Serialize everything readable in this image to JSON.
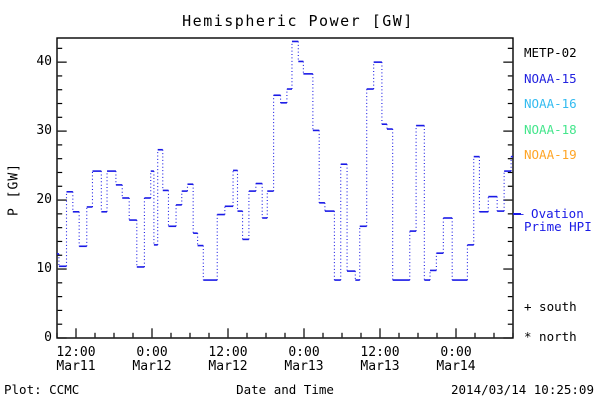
{
  "footer": {
    "left": "Plot: CCMC",
    "timestamp": "2014/03/14 10:25:09"
  },
  "chart_data": {
    "type": "line",
    "subtype": "step-dotted",
    "title": "Hemispheric Power [GW]",
    "xlabel": "Date and Time",
    "ylabel": "P [GW]",
    "ylim": [
      0,
      43.5
    ],
    "y_major_ticks": [
      0,
      10,
      20,
      30,
      40
    ],
    "y_minor_step": 2,
    "x_hours_range": [
      0,
      72
    ],
    "x_minor_step_hours": 3,
    "x_major_ticks": [
      {
        "t": 3,
        "time": "12:00",
        "date": "Mar11"
      },
      {
        "t": 15,
        "time": "0:00",
        "date": "Mar12"
      },
      {
        "t": 27,
        "time": "12:00",
        "date": "Mar12"
      },
      {
        "t": 39,
        "time": "0:00",
        "date": "Mar13"
      },
      {
        "t": 51,
        "time": "12:00",
        "date": "Mar13"
      },
      {
        "t": 63,
        "time": "0:00",
        "date": "Mar14"
      }
    ],
    "grid": false,
    "axis_color": "#000000",
    "series": [
      {
        "name": "Hemispheric Power",
        "color": "#1a1ae6",
        "steps_t_gw": [
          [
            0.0,
            12.2
          ],
          [
            0.3,
            10.4
          ],
          [
            1.5,
            21.2
          ],
          [
            2.5,
            18.3
          ],
          [
            3.5,
            13.3
          ],
          [
            4.7,
            19.0
          ],
          [
            5.6,
            24.2
          ],
          [
            7.0,
            18.3
          ],
          [
            7.9,
            24.2
          ],
          [
            9.3,
            22.2
          ],
          [
            10.3,
            20.3
          ],
          [
            11.4,
            17.1
          ],
          [
            12.6,
            10.3
          ],
          [
            13.8,
            20.3
          ],
          [
            14.8,
            24.2
          ],
          [
            15.3,
            13.5
          ],
          [
            15.9,
            27.3
          ],
          [
            16.7,
            21.4
          ],
          [
            17.6,
            16.2
          ],
          [
            18.8,
            19.3
          ],
          [
            19.7,
            21.3
          ],
          [
            20.6,
            22.3
          ],
          [
            21.5,
            15.2
          ],
          [
            22.2,
            13.4
          ],
          [
            23.1,
            8.4
          ],
          [
            25.3,
            17.9
          ],
          [
            26.5,
            19.1
          ],
          [
            27.8,
            24.3
          ],
          [
            28.5,
            18.4
          ],
          [
            29.3,
            14.3
          ],
          [
            30.3,
            21.3
          ],
          [
            31.4,
            22.4
          ],
          [
            32.4,
            17.4
          ],
          [
            33.2,
            21.3
          ],
          [
            34.2,
            35.2
          ],
          [
            35.3,
            34.1
          ],
          [
            36.3,
            36.1
          ],
          [
            37.1,
            43.0
          ],
          [
            38.1,
            40.1
          ],
          [
            38.9,
            38.3
          ],
          [
            40.4,
            30.1
          ],
          [
            41.4,
            19.6
          ],
          [
            42.3,
            18.4
          ],
          [
            43.8,
            8.4
          ],
          [
            44.8,
            25.2
          ],
          [
            45.8,
            9.7
          ],
          [
            47.1,
            8.4
          ],
          [
            47.8,
            16.2
          ],
          [
            48.9,
            36.1
          ],
          [
            50.0,
            40.0
          ],
          [
            51.3,
            31.0
          ],
          [
            52.1,
            30.3
          ],
          [
            53.0,
            8.4
          ],
          [
            55.7,
            15.5
          ],
          [
            56.7,
            30.8
          ],
          [
            58.0,
            8.4
          ],
          [
            58.9,
            9.8
          ],
          [
            59.9,
            12.3
          ],
          [
            61.0,
            17.4
          ],
          [
            62.4,
            8.4
          ],
          [
            64.8,
            13.5
          ],
          [
            65.8,
            26.3
          ],
          [
            66.7,
            18.3
          ],
          [
            68.1,
            20.5
          ],
          [
            69.5,
            18.4
          ],
          [
            70.6,
            24.2
          ],
          [
            71.7,
            26.3
          ]
        ]
      }
    ],
    "legend": {
      "position": "right",
      "entries": [
        {
          "label": "METP-02",
          "color": "#000000"
        },
        {
          "label": "NOAA-15",
          "color": "#2323e0"
        },
        {
          "label": "NOAA-16",
          "color": "#33bbf0"
        },
        {
          "label": "NOAA-18",
          "color": "#44e68c"
        },
        {
          "label": "NOAA-19",
          "color": "#ffa526"
        }
      ]
    },
    "annotations": {
      "ovation": {
        "line1": "– Ovation",
        "line2": "Prime HPI",
        "color": "#1a1ae6",
        "level_gw": 18
      },
      "markers": [
        {
          "text": "+ south"
        },
        {
          "text": "* north"
        }
      ]
    }
  }
}
